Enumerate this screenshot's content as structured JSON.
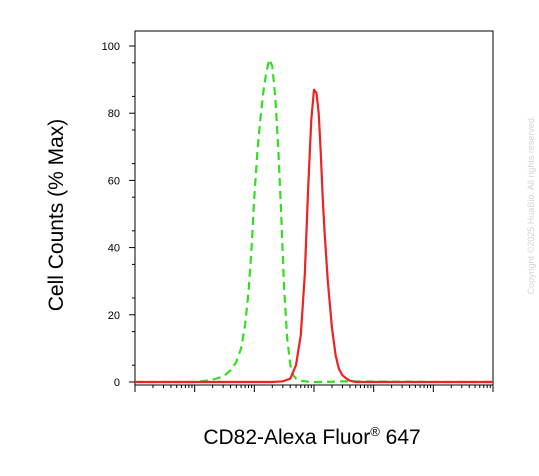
{
  "chart_data": {
    "type": "line",
    "xlabel": "CD82-Alexa Fluor",
    "xlabel_superscript": "®",
    "xlabel_suffix": " 647",
    "ylabel": "Cell Counts (% Max)",
    "x_scale": "log",
    "xlim": [
      1,
      1000000
    ],
    "ylim": [
      0,
      100
    ],
    "y_ticks": [
      0,
      20,
      40,
      60,
      80,
      100
    ],
    "grid": false,
    "legend": "none",
    "series": [
      {
        "color": "#33dd22",
        "style": "dashed",
        "x": [
          1,
          10,
          18,
          25,
          32,
          40,
          50,
          60,
          70,
          80,
          90,
          100,
          112,
          126,
          141,
          158,
          178,
          200,
          224,
          251,
          282,
          316,
          355,
          400,
          450,
          500,
          562,
          631,
          708,
          794,
          1000,
          1500,
          3000,
          100000,
          1000000
        ],
        "y": [
          0,
          0,
          0.5,
          1.2,
          2,
          3.5,
          6,
          10,
          17,
          27,
          40,
          55,
          68,
          78,
          86,
          92,
          96,
          94,
          85,
          70,
          50,
          28,
          13,
          5,
          2,
          1,
          0.5,
          0.3,
          0.2,
          0.1,
          0,
          0,
          0.2,
          0,
          0
        ]
      },
      {
        "color": "#ee2222",
        "style": "solid",
        "x": [
          1,
          200,
          300,
          400,
          500,
          600,
          700,
          800,
          900,
          1000,
          1100,
          1200,
          1300,
          1400,
          1500,
          1700,
          2000,
          2300,
          2600,
          3000,
          3500,
          4000,
          5000,
          7000,
          10000,
          100000,
          1000000
        ],
        "y": [
          0,
          0,
          0.2,
          1,
          5,
          14,
          32,
          58,
          78,
          87,
          86,
          80,
          68,
          55,
          45,
          30,
          16,
          8,
          4,
          2,
          1,
          0.4,
          0,
          0,
          0,
          0,
          0
        ]
      }
    ]
  },
  "watermark": "Copyright ©2025 HuaBio. All rights reserved."
}
